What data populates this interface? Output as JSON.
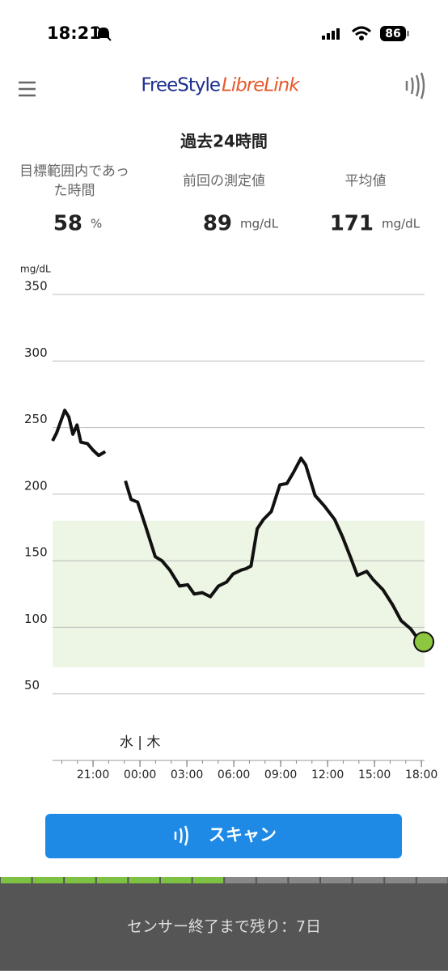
{
  "status_bar": {
    "time": "18:21",
    "battery": "86"
  },
  "header": {
    "logo_part1": "FreeStyle",
    "logo_part2": "LibreLink"
  },
  "summary": {
    "title": "過去24時間",
    "stats": [
      {
        "label": "目標範囲内であった時間",
        "value": "58",
        "unit": "%"
      },
      {
        "label": "前回の測定値",
        "value": "89",
        "unit": "mg/dL"
      },
      {
        "label": "平均値",
        "value": "171",
        "unit": "mg/dL"
      }
    ]
  },
  "chart_data": {
    "type": "line",
    "y_label": "mg/dL",
    "annotation": "水 | 木",
    "x": [
      18.41,
      18.67,
      19.19,
      19.45,
      19.71,
      19.97,
      20.22,
      20.64,
      21.0,
      21.36,
      21.78,
      22.4,
      23.07,
      23.43,
      23.85,
      24.36,
      24.98,
      25.4,
      25.91,
      26.54,
      27.05,
      27.47,
      27.98,
      28.5,
      29.02,
      29.54,
      29.95,
      30.47,
      30.78,
      31.1,
      31.5,
      31.9,
      32.4,
      32.95,
      33.4,
      33.8,
      34.3,
      34.6,
      35.2,
      35.8,
      36.45,
      36.95,
      37.45,
      37.9,
      38.5,
      38.9,
      39.55,
      40.15,
      40.7,
      41.3,
      41.8,
      42.15
    ],
    "series": [
      {
        "color": "#111111",
        "values": [
          240,
          246,
          263,
          258,
          245,
          252,
          239,
          238,
          233,
          229,
          232,
          null,
          210,
          196,
          194,
          176,
          153,
          150,
          143,
          131,
          132,
          125,
          126,
          123,
          131,
          134,
          140,
          143,
          144,
          146,
          174,
          181,
          187,
          207,
          208,
          216,
          227,
          222,
          199,
          191,
          181,
          168,
          153,
          139,
          142,
          136,
          128,
          117,
          105,
          99,
          91,
          89
        ]
      }
    ],
    "target_range": [
      70,
      180
    ],
    "target_color": "#edf5e4",
    "end_marker_color": "#8dc63f",
    "xlim": [
      18.41,
      42.2
    ],
    "ylim": [
      0,
      350
    ],
    "yticks": [
      50,
      100,
      150,
      200,
      250,
      300,
      350
    ],
    "grid": true,
    "xticks": [
      {
        "value": 21,
        "label": "21:00"
      },
      {
        "value": 24,
        "label": "00:00"
      },
      {
        "value": 27,
        "label": "03:00"
      },
      {
        "value": 30,
        "label": "06:00"
      },
      {
        "value": 33,
        "label": "09:00"
      },
      {
        "value": 36,
        "label": "12:00"
      },
      {
        "value": 39,
        "label": "15:00"
      },
      {
        "value": 42,
        "label": "18:00"
      }
    ],
    "x_minor_ticks": [
      19,
      20,
      21,
      22,
      23,
      24,
      25,
      26,
      27,
      28,
      29,
      30,
      31,
      32,
      33,
      34,
      35,
      36,
      37,
      38,
      39,
      40,
      41,
      42
    ],
    "annotation_x": 24
  },
  "button": {
    "label": "スキャン"
  },
  "footer": {
    "text": "センサー終了まで残り：7日"
  }
}
